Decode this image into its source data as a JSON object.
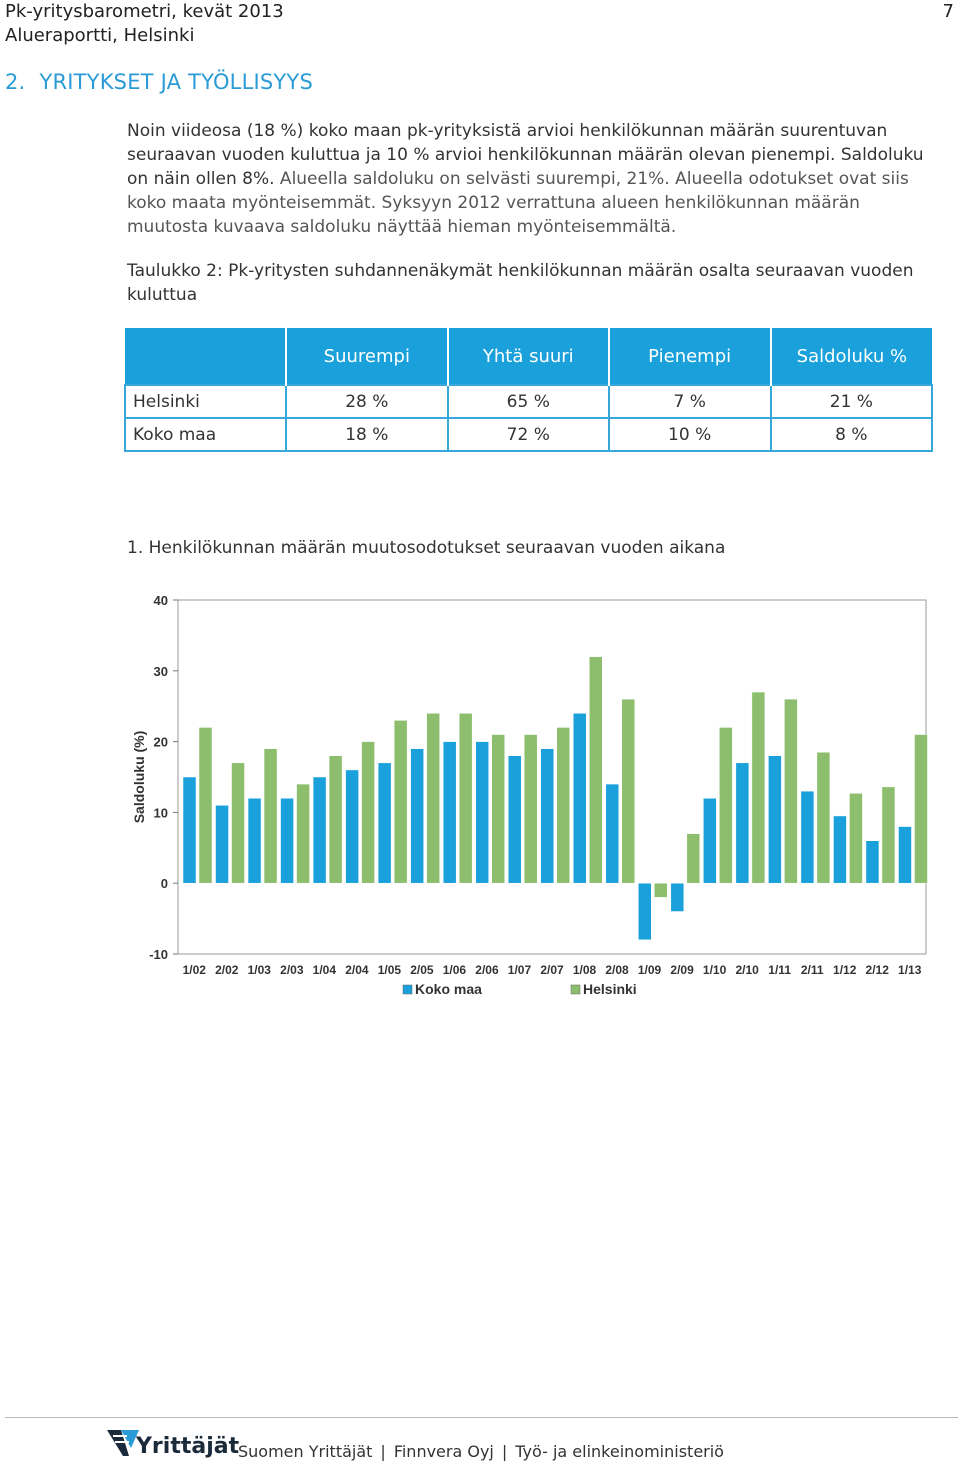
{
  "header": {
    "line1": "Pk-yritysbarometri, kevät 2013",
    "line2": "Alueraportti, Helsinki",
    "page_number": "7"
  },
  "section": {
    "number": "2.",
    "title": "YRITYKSET JA TYÖLLISYYS"
  },
  "paragraph": {
    "part1": "Noin viideosa (18 %) koko maan pk-yrityksistä arvioi henkilökunnan määrän suurentuvan seuraavan vuoden kuluttua ja 10 % arvioi henkilökunnan määrän olevan pienempi. Saldoluku on näin ollen 8%.",
    "part2": " Alueella saldoluku on selvästi suurempi, 21%. Alueella odotukset ovat siis koko maata myönteisemmät. Syksyyn 2012 verrattuna alueen henkilökunnan määrän muutosta kuvaava saldoluku näyttää hieman myönteisemmältä."
  },
  "table_caption": "Taulukko 2: Pk-yritysten suhdannenäkymät henkilökunnan määrän osalta seuraavan vuoden kuluttua",
  "table": {
    "headers": [
      "",
      "Suurempi",
      "Yhtä suuri",
      "Pienempi",
      "Saldoluku %"
    ],
    "rows": [
      {
        "label": "Helsinki",
        "values": [
          "28 %",
          "65 %",
          "7 %",
          "21 %"
        ]
      },
      {
        "label": "Koko maa",
        "values": [
          "18 %",
          "72 %",
          "10 %",
          "8 %"
        ]
      }
    ]
  },
  "chart_title": "1. Henkilökunnan määrän muutosodotukset seuraavan vuoden aikana",
  "chart_data": {
    "type": "bar",
    "ylabel": "Saldoluku (%)",
    "ylim": [
      -10,
      40
    ],
    "yticks": [
      40,
      30,
      20,
      10,
      0,
      -10
    ],
    "categories": [
      "1/02",
      "2/02",
      "1/03",
      "2/03",
      "1/04",
      "2/04",
      "1/05",
      "2/05",
      "1/06",
      "2/06",
      "1/07",
      "2/07",
      "1/08",
      "2/08",
      "1/09",
      "2/09",
      "1/10",
      "2/10",
      "1/11",
      "2/11",
      "1/12",
      "2/12",
      "1/13"
    ],
    "series": [
      {
        "name": "Koko maa",
        "color": "#1aa0da",
        "values": [
          15,
          11,
          12,
          12,
          15,
          16,
          17,
          19,
          20,
          20,
          18,
          19,
          24,
          14,
          -8,
          -4,
          12,
          17,
          18,
          13,
          9.5,
          6,
          8
        ]
      },
      {
        "name": "Helsinki",
        "color": "#8cbe6e",
        "values": [
          22,
          17,
          19,
          14,
          18,
          20,
          23,
          24,
          24,
          21,
          21,
          22,
          32,
          26,
          -2,
          7,
          22,
          27,
          26,
          18.5,
          12.7,
          13.6,
          21
        ]
      }
    ],
    "legend_position": "bottom"
  },
  "footer": {
    "logo": "Yrittäjät",
    "items": [
      "Suomen Yrittäjät",
      "Finnvera Oyj",
      "Työ- ja elinkeinoministeriö"
    ],
    "separator": "|"
  }
}
